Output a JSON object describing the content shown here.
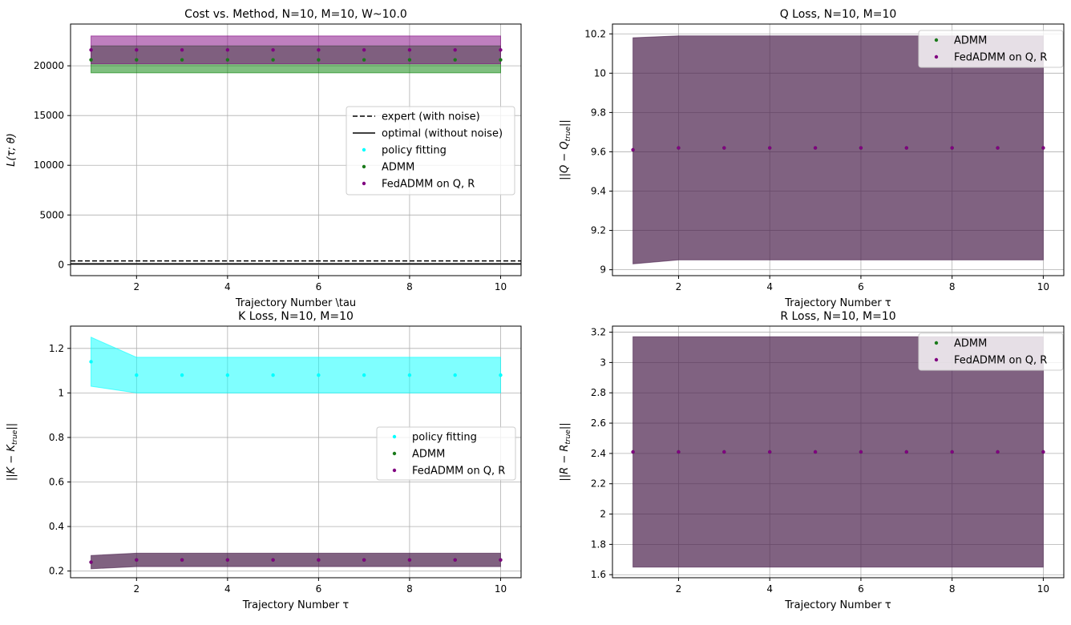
{
  "chart_data": [
    {
      "type": "scatter",
      "title": "Cost vs. Method, N=10, M=10, W~10.0",
      "xlabel": "Trajectory Number \\tau",
      "ylabel": "L(τ; θ)",
      "xlim": [
        0.55,
        10.45
      ],
      "ylim": [
        -1100,
        24200
      ],
      "xticks": [
        2,
        4,
        6,
        8,
        10
      ],
      "yticks": [
        0,
        5000,
        10000,
        15000,
        20000
      ],
      "grid": true,
      "legend_position": "center-right",
      "legend": [
        {
          "label": "expert (with noise)",
          "kind": "dashed-line",
          "color": "#000000"
        },
        {
          "label": "optimal (without noise)",
          "kind": "solid-line",
          "color": "#000000"
        },
        {
          "label": "policy fitting",
          "kind": "marker",
          "color": "#00ffff"
        },
        {
          "label": "ADMM",
          "kind": "marker",
          "color": "#1a7a1a"
        },
        {
          "label": "FedADMM on Q, R",
          "kind": "marker",
          "color": "#800080"
        }
      ],
      "hlines": [
        {
          "name": "expert (with noise)",
          "y": 380,
          "style": "dashed"
        },
        {
          "name": "optimal (without noise)",
          "y": 80,
          "style": "solid"
        }
      ],
      "x": [
        1,
        2,
        3,
        4,
        5,
        6,
        7,
        8,
        9,
        10
      ],
      "series": [
        {
          "name": "ADMM",
          "color": "#008000",
          "y": [
            20600,
            20600,
            20600,
            20600,
            20600,
            20600,
            20600,
            20600,
            20600,
            20600
          ],
          "band_low": [
            19300,
            19300,
            19300,
            19300,
            19300,
            19300,
            19300,
            19300,
            19300,
            19300
          ],
          "band_high": [
            22000,
            22000,
            22000,
            22000,
            22000,
            22000,
            22000,
            22000,
            22000,
            22000
          ]
        },
        {
          "name": "FedADMM on Q, R",
          "color": "#800080",
          "y": [
            21600,
            21600,
            21600,
            21600,
            21600,
            21600,
            21600,
            21600,
            21600,
            21600
          ],
          "band_low": [
            20200,
            20200,
            20200,
            20200,
            20200,
            20200,
            20200,
            20200,
            20200,
            20200
          ],
          "band_high": [
            23000,
            23000,
            23000,
            23000,
            23000,
            23000,
            23000,
            23000,
            23000,
            23000
          ]
        }
      ]
    },
    {
      "type": "scatter",
      "title": "Q Loss, N=10, M=10",
      "xlabel": "Trajectory Number τ",
      "ylabel": "||Q − Q_true||",
      "xlim": [
        0.55,
        10.45
      ],
      "ylim": [
        8.97,
        10.25
      ],
      "xticks": [
        2,
        4,
        6,
        8,
        10
      ],
      "yticks": [
        9.0,
        9.2,
        9.4,
        9.6,
        9.8,
        10.0,
        10.2
      ],
      "grid": true,
      "legend_position": "top-right",
      "legend": [
        {
          "label": "ADMM",
          "kind": "marker",
          "color": "#1a7a1a"
        },
        {
          "label": "FedADMM on Q, R",
          "kind": "marker",
          "color": "#800080"
        }
      ],
      "x": [
        1,
        2,
        3,
        4,
        5,
        6,
        7,
        8,
        9,
        10
      ],
      "series": [
        {
          "name": "ADMM",
          "color": "#008000",
          "y": [
            9.61,
            9.62,
            9.62,
            9.62,
            9.62,
            9.62,
            9.62,
            9.62,
            9.62,
            9.62
          ],
          "band_low": [
            9.03,
            9.05,
            9.05,
            9.05,
            9.05,
            9.05,
            9.05,
            9.05,
            9.05,
            9.05
          ],
          "band_high": [
            10.18,
            10.19,
            10.19,
            10.19,
            10.19,
            10.19,
            10.19,
            10.19,
            10.19,
            10.19
          ]
        },
        {
          "name": "FedADMM on Q, R",
          "color": "#800080",
          "y": [
            9.61,
            9.62,
            9.62,
            9.62,
            9.62,
            9.62,
            9.62,
            9.62,
            9.62,
            9.62
          ],
          "band_low": [
            9.03,
            9.05,
            9.05,
            9.05,
            9.05,
            9.05,
            9.05,
            9.05,
            9.05,
            9.05
          ],
          "band_high": [
            10.18,
            10.2,
            10.2,
            10.2,
            10.2,
            10.2,
            10.2,
            10.2,
            10.2,
            10.2
          ]
        }
      ]
    },
    {
      "type": "scatter",
      "title": "K Loss, N=10, M=10",
      "xlabel": "Trajectory Number τ",
      "ylabel": "||K − K_true||",
      "xlim": [
        0.55,
        10.45
      ],
      "ylim": [
        0.17,
        1.3
      ],
      "xticks": [
        2,
        4,
        6,
        8,
        10
      ],
      "yticks": [
        0.2,
        0.4,
        0.6,
        0.8,
        1.0,
        1.2
      ],
      "grid": true,
      "legend_position": "center-right",
      "legend": [
        {
          "label": "policy fitting",
          "kind": "marker",
          "color": "#00ffff"
        },
        {
          "label": "ADMM",
          "kind": "marker",
          "color": "#1a7a1a"
        },
        {
          "label": "FedADMM on Q, R",
          "kind": "marker",
          "color": "#800080"
        }
      ],
      "x": [
        1,
        2,
        3,
        4,
        5,
        6,
        7,
        8,
        9,
        10
      ],
      "series": [
        {
          "name": "policy fitting",
          "color": "#00ffff",
          "y": [
            1.14,
            1.08,
            1.08,
            1.08,
            1.08,
            1.08,
            1.08,
            1.08,
            1.08,
            1.08
          ],
          "band_low": [
            1.03,
            1.0,
            1.0,
            1.0,
            1.0,
            1.0,
            1.0,
            1.0,
            1.0,
            1.0
          ],
          "band_high": [
            1.25,
            1.16,
            1.16,
            1.16,
            1.16,
            1.16,
            1.16,
            1.16,
            1.16,
            1.16
          ]
        },
        {
          "name": "ADMM",
          "color": "#008000",
          "y": [
            0.24,
            0.25,
            0.25,
            0.25,
            0.25,
            0.25,
            0.25,
            0.25,
            0.25,
            0.25
          ],
          "band_low": [
            0.21,
            0.22,
            0.22,
            0.22,
            0.22,
            0.22,
            0.22,
            0.22,
            0.22,
            0.22
          ],
          "band_high": [
            0.27,
            0.28,
            0.28,
            0.28,
            0.28,
            0.28,
            0.28,
            0.28,
            0.28,
            0.28
          ]
        },
        {
          "name": "FedADMM on Q, R",
          "color": "#800080",
          "y": [
            0.24,
            0.25,
            0.25,
            0.25,
            0.25,
            0.25,
            0.25,
            0.25,
            0.25,
            0.25
          ],
          "band_low": [
            0.21,
            0.22,
            0.22,
            0.22,
            0.22,
            0.22,
            0.22,
            0.22,
            0.22,
            0.22
          ],
          "band_high": [
            0.27,
            0.28,
            0.28,
            0.28,
            0.28,
            0.28,
            0.28,
            0.28,
            0.28,
            0.28
          ]
        }
      ]
    },
    {
      "type": "scatter",
      "title": "R Loss, N=10, M=10",
      "xlabel": "Trajectory Number τ",
      "ylabel": "||R − R_true||",
      "xlim": [
        0.55,
        10.45
      ],
      "ylim": [
        1.58,
        3.24
      ],
      "xticks": [
        2,
        4,
        6,
        8,
        10
      ],
      "yticks": [
        1.6,
        1.8,
        2.0,
        2.2,
        2.4,
        2.6,
        2.8,
        3.0,
        3.2
      ],
      "grid": true,
      "legend_position": "top-right",
      "legend": [
        {
          "label": "ADMM",
          "kind": "marker",
          "color": "#1a7a1a"
        },
        {
          "label": "FedADMM on Q, R",
          "kind": "marker",
          "color": "#800080"
        }
      ],
      "x": [
        1,
        2,
        3,
        4,
        5,
        6,
        7,
        8,
        9,
        10
      ],
      "series": [
        {
          "name": "ADMM",
          "color": "#008000",
          "y": [
            2.41,
            2.41,
            2.41,
            2.41,
            2.41,
            2.41,
            2.41,
            2.41,
            2.41,
            2.41
          ],
          "band_low": [
            1.65,
            1.65,
            1.65,
            1.65,
            1.65,
            1.65,
            1.65,
            1.65,
            1.65,
            1.65
          ],
          "band_high": [
            3.17,
            3.17,
            3.17,
            3.17,
            3.17,
            3.17,
            3.17,
            3.17,
            3.17,
            3.17
          ]
        },
        {
          "name": "FedADMM on Q, R",
          "color": "#800080",
          "y": [
            2.41,
            2.41,
            2.41,
            2.41,
            2.41,
            2.41,
            2.41,
            2.41,
            2.41,
            2.41
          ],
          "band_low": [
            1.65,
            1.65,
            1.65,
            1.65,
            1.65,
            1.65,
            1.65,
            1.65,
            1.65,
            1.65
          ],
          "band_high": [
            3.17,
            3.17,
            3.17,
            3.17,
            3.17,
            3.17,
            3.17,
            3.17,
            3.17,
            3.17
          ]
        }
      ]
    }
  ]
}
